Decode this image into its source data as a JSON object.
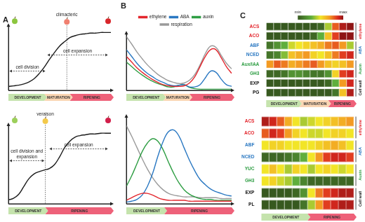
{
  "chart_data": [
    {
      "type": "line",
      "title": "A",
      "x": [
        0,
        5,
        10,
        15,
        20,
        25,
        30,
        35,
        40,
        45,
        50,
        55,
        60,
        65,
        70,
        75,
        80,
        85,
        90,
        95,
        100
      ],
      "values": [
        0.06,
        0.07,
        0.08,
        0.1,
        0.13,
        0.18,
        0.26,
        0.36,
        0.48,
        0.59,
        0.69,
        0.76,
        0.82,
        0.85,
        0.87,
        0.88,
        0.89,
        0.89,
        0.9,
        0.9,
        0.9
      ],
      "color": "#1a1a1a",
      "xlim": [
        0,
        100
      ],
      "ylim": [
        0,
        1
      ],
      "tick_labels": false,
      "grid": false,
      "phases": [
        {
          "label": "DEVELOPMENT",
          "start": 0,
          "end": 35,
          "color": "#c5e3ad"
        },
        {
          "label": "MATURATION",
          "start": 35,
          "end": 60,
          "color": "#fad5b2"
        },
        {
          "label": "RIPENING",
          "start": 60,
          "end": 100,
          "color": "#ee6179"
        }
      ],
      "annotations": [
        {
          "text": "climacteric",
          "x": 57
        },
        {
          "text": "cell division",
          "x": [
            1,
            36
          ],
          "y": 0.3
        },
        {
          "text": "cell expansion",
          "x": [
            38,
            97
          ],
          "y": 0.55
        }
      ]
    },
    {
      "type": "line",
      "title": "B",
      "x": [
        0,
        5,
        10,
        15,
        20,
        25,
        30,
        35,
        40,
        45,
        50,
        55,
        60,
        65,
        70,
        75,
        80,
        85,
        90,
        95,
        100
      ],
      "series": [
        {
          "name": "ethylene",
          "color": "#e3262d",
          "values": [
            0.6,
            0.5,
            0.4,
            0.32,
            0.25,
            0.19,
            0.14,
            0.1,
            0.08,
            0.07,
            0.07,
            0.08,
            0.13,
            0.24,
            0.42,
            0.6,
            0.72,
            0.72,
            0.58,
            0.42,
            0.3
          ]
        },
        {
          "name": "ABA",
          "color": "#2a78c2",
          "values": [
            0.72,
            0.6,
            0.48,
            0.38,
            0.3,
            0.24,
            0.18,
            0.14,
            0.1,
            0.08,
            0.09,
            0.1,
            0.06,
            0.06,
            0.1,
            0.22,
            0.34,
            0.32,
            0.2,
            0.1,
            0.07
          ]
        },
        {
          "name": "auxin",
          "color": "#2f9e44",
          "values": [
            0.5,
            0.42,
            0.34,
            0.27,
            0.21,
            0.16,
            0.12,
            0.09,
            0.06,
            0.06,
            0.09,
            0.1,
            0.05,
            0.03,
            0.02,
            0.02,
            0.02,
            0.02,
            0.02,
            0.02,
            0.02
          ]
        },
        {
          "name": "respiration",
          "color": "#9a9a9a",
          "values": [
            0.95,
            0.82,
            0.68,
            0.56,
            0.45,
            0.36,
            0.28,
            0.22,
            0.17,
            0.14,
            0.12,
            0.13,
            0.18,
            0.28,
            0.45,
            0.65,
            0.78,
            0.76,
            0.62,
            0.48,
            0.38
          ]
        }
      ],
      "legend": "top",
      "xlim": [
        0,
        100
      ],
      "ylim": [
        0,
        1
      ],
      "tick_labels": false,
      "grid": false,
      "phases": [
        {
          "label": "DEVELOPMENT",
          "start": 0,
          "end": 35,
          "color": "#c5e3ad"
        },
        {
          "label": "MATURATION",
          "start": 35,
          "end": 60,
          "color": "#fad5b2"
        },
        {
          "label": "RIPENING",
          "start": 60,
          "end": 100,
          "color": "#ee6179"
        }
      ]
    },
    {
      "type": "heatmap",
      "title": "C",
      "categories": [
        "ACS",
        "ACO",
        "ABF",
        "NCED",
        "Aux/IAA",
        "GH3",
        "EXP",
        "PG"
      ],
      "cells": [
        [
          0,
          0,
          0,
          0,
          0,
          0,
          0,
          0.05,
          0.4,
          0.8,
          0.95,
          1
        ],
        [
          0,
          0,
          0,
          0,
          0,
          0,
          0.05,
          0.3,
          0.6,
          0.85,
          1,
          1
        ],
        [
          0.1,
          0.2,
          0.3,
          0.45,
          0.5,
          0.55,
          0.6,
          0.65,
          0.75,
          0.8,
          0.7,
          0.4
        ],
        [
          0.1,
          0.15,
          0.35,
          0.6,
          0.65,
          0.7,
          0.55,
          0.5,
          0.6,
          0.75,
          0.85,
          0.9
        ],
        [
          0.7,
          0.8,
          0.75,
          0.65,
          0.7,
          0.75,
          0.8,
          0.7,
          0.6,
          0.55,
          0.6,
          0.7
        ],
        [
          0.05,
          0.05,
          0.1,
          0.2,
          0.2,
          0.15,
          0.1,
          0.1,
          0.2,
          0.55,
          0.85,
          0.9
        ],
        [
          0,
          0,
          0,
          0,
          0,
          0,
          0,
          0,
          0.05,
          0.3,
          0.7,
          0.9
        ],
        [
          0,
          0,
          0,
          0,
          0,
          0,
          0,
          0,
          0,
          0.1,
          0.6,
          0.95
        ]
      ],
      "colorbar_range": [
        0,
        1
      ],
      "colorbar_ticks": [
        {
          "value": 0,
          "label": "min"
        },
        {
          "value": 1,
          "label": "max"
        }
      ],
      "tick_labels": "y",
      "groups": [
        {
          "label": "ethylene",
          "color": "#e3262d",
          "rows": [
            "ACS",
            "ACO"
          ]
        },
        {
          "label": "ABA",
          "color": "#2a78c2",
          "rows": [
            "ABF",
            "NCED"
          ]
        },
        {
          "label": "Auxin",
          "color": "#2f9e44",
          "rows": [
            "Aux/IAA",
            "GH3"
          ]
        },
        {
          "label": "Cell wall",
          "color": "#111111",
          "rows": [
            "EXP",
            "PG"
          ]
        }
      ],
      "phases": [
        {
          "label": "DEVELOPMENT",
          "start": 0,
          "end": 4.5,
          "color": "#c5e3ad"
        },
        {
          "label": "MATURATION",
          "start": 4.5,
          "end": 8.5,
          "color": "#fad5b2"
        },
        {
          "label": "RIPENING",
          "start": 8.5,
          "end": 12,
          "color": "#ee6179"
        }
      ]
    },
    {
      "type": "line",
      "x": [
        0,
        5,
        10,
        15,
        20,
        25,
        30,
        35,
        40,
        45,
        50,
        55,
        60,
        65,
        70,
        75,
        80,
        85,
        90,
        95,
        100
      ],
      "values": [
        0.05,
        0.07,
        0.12,
        0.22,
        0.32,
        0.38,
        0.41,
        0.43,
        0.45,
        0.5,
        0.6,
        0.72,
        0.8,
        0.85,
        0.87,
        0.88,
        0.89,
        0.89,
        0.9,
        0.9,
        0.9
      ],
      "color": "#1a1a1a",
      "xlim": [
        0,
        100
      ],
      "ylim": [
        0,
        1
      ],
      "tick_labels": false,
      "grid": false,
      "phases": [
        {
          "label": "DEVELOPMENT",
          "start": 0,
          "end": 36,
          "color": "#c5e3ad"
        },
        {
          "label": "RIPENING",
          "start": 36,
          "end": 100,
          "color": "#ee6179"
        }
      ],
      "annotations": [
        {
          "text": "veraison",
          "x": 36
        },
        {
          "text": "cell division and expansion",
          "x": [
            1,
            35
          ],
          "y": 0.55
        },
        {
          "text": "cell expansion",
          "x": [
            40,
            97
          ],
          "y": 0.7
        }
      ]
    },
    {
      "type": "line",
      "x": [
        0,
        5,
        10,
        15,
        20,
        25,
        30,
        35,
        40,
        45,
        50,
        55,
        60,
        65,
        70,
        75,
        80,
        85,
        90,
        95,
        100
      ],
      "series": [
        {
          "color": "#e3262d",
          "values": [
            0.04,
            0.07,
            0.1,
            0.12,
            0.12,
            0.1,
            0.07,
            0.05,
            0.04,
            0.04,
            0.04,
            0.04,
            0.03,
            0.03,
            0.03,
            0.03,
            0.03,
            0.03,
            0.03,
            0.03,
            0.03
          ]
        },
        {
          "color": "#2a78c2",
          "values": [
            0.02,
            0.03,
            0.05,
            0.1,
            0.2,
            0.35,
            0.55,
            0.72,
            0.83,
            0.85,
            0.78,
            0.64,
            0.5,
            0.38,
            0.28,
            0.22,
            0.17,
            0.14,
            0.12,
            0.1,
            0.09
          ]
        },
        {
          "color": "#2f9e44",
          "values": [
            0.2,
            0.32,
            0.46,
            0.6,
            0.7,
            0.75,
            0.72,
            0.62,
            0.48,
            0.35,
            0.24,
            0.16,
            0.11,
            0.08,
            0.06,
            0.05,
            0.05,
            0.04,
            0.04,
            0.04,
            0.04
          ]
        },
        {
          "color": "#9a9a9a",
          "values": [
            0.9,
            0.78,
            0.65,
            0.52,
            0.4,
            0.3,
            0.22,
            0.16,
            0.12,
            0.1,
            0.09,
            0.08,
            0.08,
            0.08,
            0.07,
            0.07,
            0.07,
            0.07,
            0.06,
            0.06,
            0.06
          ]
        }
      ],
      "xlim": [
        0,
        100
      ],
      "ylim": [
        0,
        1
      ],
      "tick_labels": false,
      "grid": false,
      "phases": [
        {
          "label": "DEVELOPMENT",
          "start": 0,
          "end": 36,
          "color": "#c5e3ad"
        },
        {
          "label": "RIPENING",
          "start": 36,
          "end": 100,
          "color": "#ee6179"
        }
      ]
    },
    {
      "type": "heatmap",
      "categories": [
        "ACS",
        "ACO",
        "ABF",
        "NCED",
        "YUC",
        "GH3",
        "EXP",
        "PL"
      ],
      "cells": [
        [
          0.95,
          0.9,
          0.8,
          0.65,
          0.5,
          0.4,
          0.45,
          0.5,
          0.55,
          0.6,
          0.65,
          0.7
        ],
        [
          0.8,
          0.9,
          0.85,
          0.7,
          0.55,
          0.5,
          0.45,
          0.45,
          0.5,
          0.55,
          0.55,
          0.5
        ],
        [
          0.5,
          0.55,
          0.55,
          0.5,
          0.5,
          0.5,
          0.5,
          0.55,
          0.6,
          0.65,
          0.6,
          0.5
        ],
        [
          0.05,
          0.05,
          0.05,
          0.1,
          0.15,
          0.3,
          0.5,
          0.7,
          0.85,
          0.9,
          0.9,
          0.85
        ],
        [
          0.5,
          0.6,
          0.5,
          0.4,
          0.55,
          0.5,
          0.4,
          0.5,
          0.55,
          0.5,
          0.45,
          0.5
        ],
        [
          0.5,
          0.55,
          0.45,
          0.4,
          0.3,
          0.15,
          0.05,
          0.05,
          0.05,
          0.05,
          0.05,
          0.05
        ],
        [
          0,
          0,
          0,
          0,
          0.05,
          0.2,
          0.5,
          0.75,
          0.85,
          0.9,
          0.95,
          0.95
        ],
        [
          0,
          0,
          0,
          0,
          0,
          0.1,
          0.4,
          0.7,
          0.85,
          0.9,
          0.95,
          0.95
        ]
      ],
      "colorbar_range": [
        0,
        1
      ],
      "tick_labels": "y",
      "groups": [
        {
          "label": "ethylene",
          "color": "#e3262d",
          "rows": [
            "ACS",
            "ACO"
          ]
        },
        {
          "label": "ABA",
          "color": "#2a78c2",
          "rows": [
            "ABF",
            "NCED"
          ]
        },
        {
          "label": "Auxin",
          "color": "#2f9e44",
          "rows": [
            "YUC",
            "GH3"
          ]
        },
        {
          "label": "Cell wall",
          "color": "#111111",
          "rows": [
            "EXP",
            "PL"
          ]
        }
      ],
      "phases": [
        {
          "label": "DEVELOPMENT",
          "start": 0,
          "end": 6,
          "color": "#c5e3ad"
        },
        {
          "label": "RIPENING",
          "start": 6,
          "end": 12,
          "color": "#ee6179"
        }
      ]
    }
  ]
}
